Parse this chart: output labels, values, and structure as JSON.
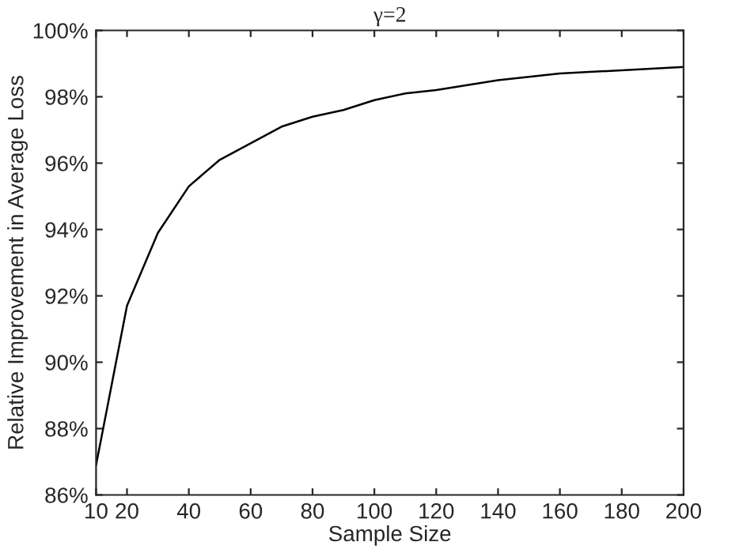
{
  "chart_data": {
    "type": "line",
    "title": "γ=2",
    "xlabel": "Sample Size",
    "ylabel": "Relative Improvement in Average Loss",
    "x": [
      10,
      20,
      30,
      40,
      50,
      60,
      70,
      80,
      90,
      100,
      110,
      120,
      140,
      160,
      180,
      200
    ],
    "series": [
      {
        "color": "#000000",
        "values": [
          86.9,
          91.7,
          93.9,
          95.3,
          96.1,
          96.6,
          97.1,
          97.4,
          97.6,
          97.9,
          98.1,
          98.2,
          98.5,
          98.7,
          98.8,
          98.9
        ]
      }
    ],
    "xlim": [
      10,
      200
    ],
    "xticks": [
      10,
      20,
      40,
      60,
      80,
      100,
      120,
      140,
      160,
      180,
      200
    ],
    "ylim": [
      86,
      100
    ],
    "yticks": [
      {
        "value": 86,
        "label": "86%"
      },
      {
        "value": 88,
        "label": "88%"
      },
      {
        "value": 90,
        "label": "90%"
      },
      {
        "value": 92,
        "label": "92%"
      },
      {
        "value": 94,
        "label": "94%"
      },
      {
        "value": 96,
        "label": "96%"
      },
      {
        "value": 98,
        "label": "98%"
      },
      {
        "value": 100,
        "label": "100%"
      }
    ],
    "grid": false,
    "legend": false,
    "marker": "none",
    "line_style": "solid"
  }
}
